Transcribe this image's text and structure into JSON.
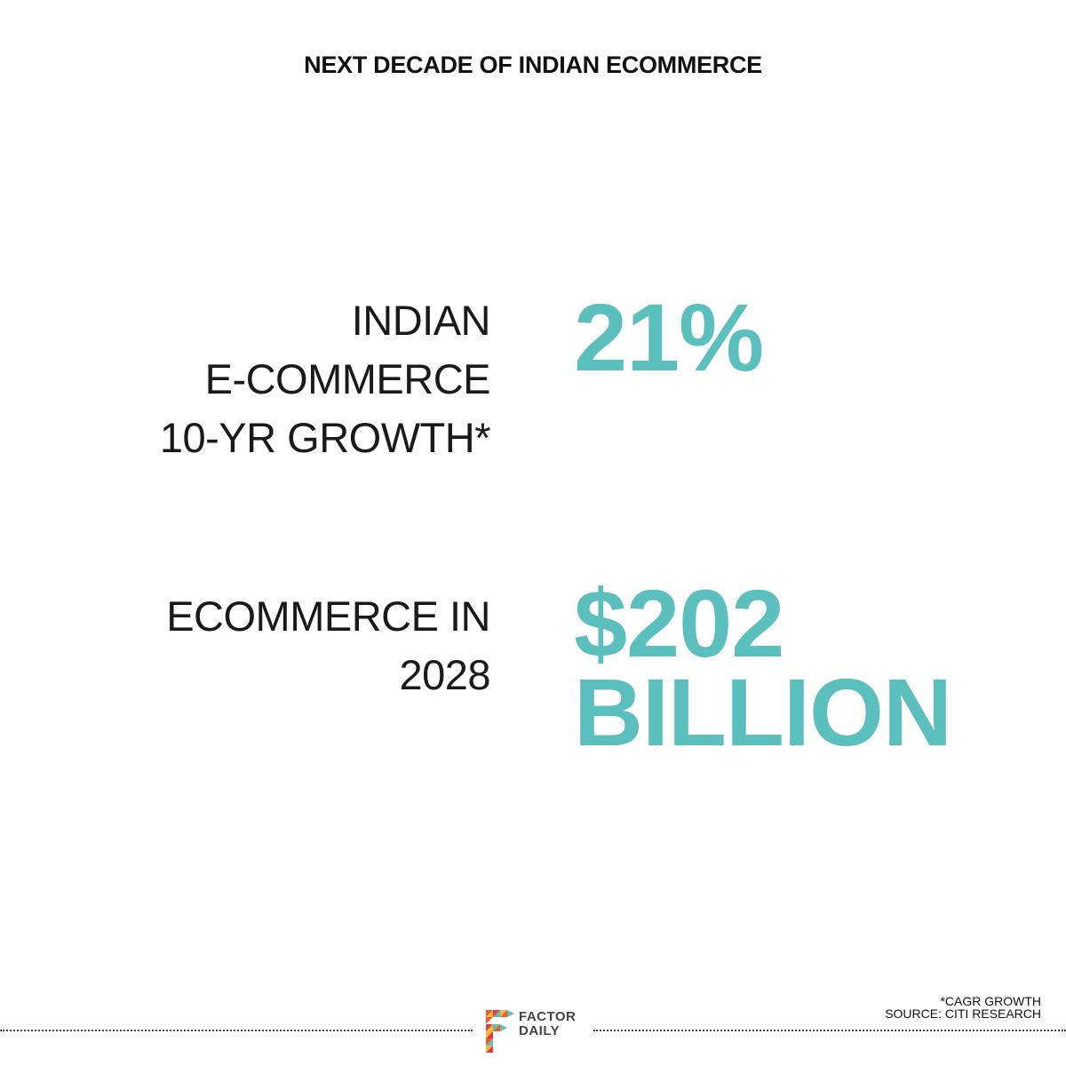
{
  "title": "NEXT DECADE OF INDIAN ECOMMERCE",
  "colors": {
    "accent": "#5bbfbd",
    "text": "#111111"
  },
  "stats": [
    {
      "label_lines": [
        "INDIAN",
        "E-COMMERCE",
        "10-YR GROWTH*"
      ],
      "value_lines": [
        "21%"
      ]
    },
    {
      "label_lines": [
        "ECOMMERCE IN",
        "2028"
      ],
      "value_lines": [
        "$202",
        "BILLION"
      ]
    }
  ],
  "footer": {
    "logo_text": [
      "FACTOR",
      "DAILY"
    ],
    "notes": [
      "*CAGR GROWTH",
      "SOURCE: CITI RESEARCH"
    ]
  }
}
